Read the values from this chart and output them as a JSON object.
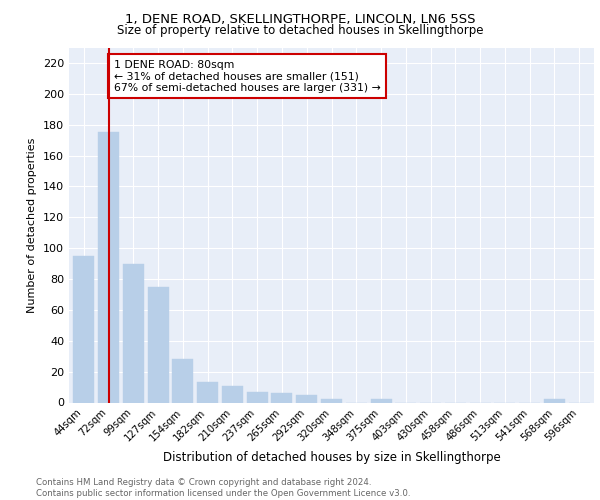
{
  "title": "1, DENE ROAD, SKELLINGTHORPE, LINCOLN, LN6 5SS",
  "subtitle": "Size of property relative to detached houses in Skellingthorpe",
  "xlabel": "Distribution of detached houses by size in Skellingthorpe",
  "ylabel": "Number of detached properties",
  "categories": [
    "44sqm",
    "72sqm",
    "99sqm",
    "127sqm",
    "154sqm",
    "182sqm",
    "210sqm",
    "237sqm",
    "265sqm",
    "292sqm",
    "320sqm",
    "348sqm",
    "375sqm",
    "403sqm",
    "430sqm",
    "458sqm",
    "486sqm",
    "513sqm",
    "541sqm",
    "568sqm",
    "596sqm"
  ],
  "values": [
    95,
    175,
    90,
    75,
    28,
    13,
    11,
    7,
    6,
    5,
    2,
    0,
    2,
    0,
    0,
    0,
    0,
    0,
    0,
    2,
    0
  ],
  "bar_color": "#b8cfe8",
  "bar_edge_color": "#b8cfe8",
  "vline_x": 1,
  "vline_color": "#cc0000",
  "annotation_text": "1 DENE ROAD: 80sqm\n← 31% of detached houses are smaller (151)\n67% of semi-detached houses are larger (331) →",
  "annotation_box_color": "#ffffff",
  "annotation_box_edge": "#cc0000",
  "ylim": [
    0,
    230
  ],
  "yticks": [
    0,
    20,
    40,
    60,
    80,
    100,
    120,
    140,
    160,
    180,
    200,
    220
  ],
  "background_color": "#e8eef8",
  "footer": "Contains HM Land Registry data © Crown copyright and database right 2024.\nContains public sector information licensed under the Open Government Licence v3.0."
}
